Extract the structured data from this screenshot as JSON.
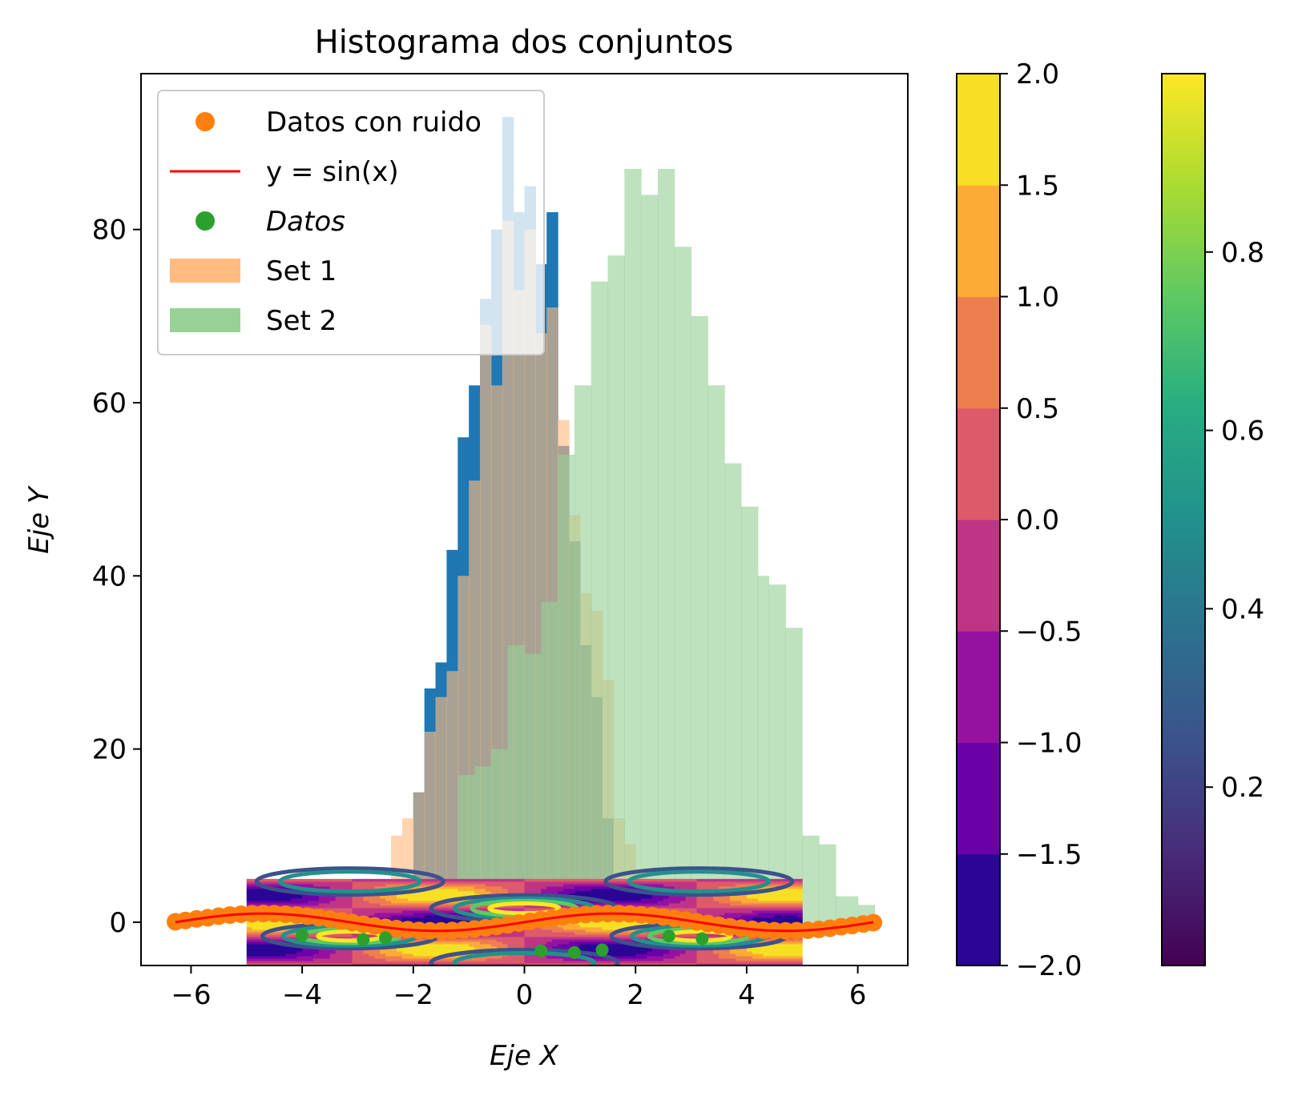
{
  "chart_data": {
    "type": "bar",
    "title": "Histograma dos conjuntos",
    "xlabel": "Eje X",
    "ylabel": "Eje Y",
    "xlim": [
      -6.9,
      6.9
    ],
    "ylim": [
      -5,
      98
    ],
    "xticks": [
      -6,
      -4,
      -2,
      0,
      2,
      4,
      6
    ],
    "xtick_labels": [
      "−6",
      "−4",
      "−2",
      "0",
      "2",
      "4",
      "6"
    ],
    "yticks": [
      0,
      20,
      40,
      60,
      80
    ],
    "ytick_labels": [
      "0",
      "20",
      "40",
      "60",
      "80"
    ],
    "legend": {
      "placement": "upper-left",
      "entries": [
        {
          "label": "Datos con ruido",
          "marker": "dot",
          "color": "#ff7f0e",
          "italic": false
        },
        {
          "label": "y = sin(x)",
          "marker": "line",
          "color": "#ff0000",
          "italic": false
        },
        {
          "label": "Datos",
          "marker": "dot",
          "color": "#2ca02c",
          "italic": true
        },
        {
          "label": "Set 1",
          "marker": "patch",
          "color": "#ffbb80",
          "italic": false
        },
        {
          "label": "Set 2",
          "marker": "patch",
          "color": "#97d196",
          "italic": false
        }
      ]
    },
    "histograms": [
      {
        "name": "",
        "color": "#1f77b4",
        "opacity": 1.0,
        "edges": [
          -2.0,
          -1.8,
          -1.6,
          -1.4,
          -1.2,
          -1.0,
          -0.8,
          -0.6,
          -0.4,
          -0.2,
          0.0,
          0.2,
          0.4,
          0.6,
          0.8,
          1.0,
          1.2,
          1.4,
          1.6,
          1.8
        ],
        "counts": [
          15,
          27,
          30,
          43,
          56,
          62,
          72,
          80,
          93,
          82,
          85,
          76,
          82,
          55,
          44,
          32,
          26,
          12,
          5
        ]
      },
      {
        "name": "Set 1",
        "color": "#ffbb80",
        "opacity": 0.62,
        "edges": [
          -2.4,
          -2.2,
          -2.0,
          -1.8,
          -1.6,
          -1.4,
          -1.2,
          -1.0,
          -0.8,
          -0.6,
          -0.4,
          -0.2,
          0.0,
          0.2,
          0.4,
          0.6,
          0.8,
          1.0,
          1.2,
          1.4,
          1.6,
          1.8,
          2.0,
          2.2,
          2.4
        ],
        "counts": [
          10,
          12,
          15,
          22,
          26,
          29,
          40,
          51,
          69,
          62,
          81,
          73,
          80,
          68,
          71,
          58,
          47,
          38,
          36,
          28,
          12,
          9,
          6,
          5
        ]
      },
      {
        "name": "Set 2",
        "color": "#97d196",
        "opacity": 0.62,
        "edges": [
          -1.2,
          -0.9,
          -0.6,
          -0.3,
          0.0,
          0.3,
          0.6,
          0.9,
          1.2,
          1.5,
          1.8,
          2.1,
          2.4,
          2.7,
          3.0,
          3.3,
          3.6,
          3.9,
          4.2,
          4.4,
          4.7,
          5.0,
          5.3,
          5.6,
          6.0,
          6.3
        ],
        "counts": [
          17,
          18,
          20,
          32,
          31,
          37,
          54,
          62,
          74,
          77,
          87,
          84,
          87,
          78,
          70,
          62,
          53,
          48,
          40,
          39,
          34,
          10,
          9,
          3,
          2
        ]
      }
    ],
    "line": {
      "name": "y = sin(x)",
      "color": "#ff0000",
      "x_range": [
        -6.28,
        6.28
      ],
      "function": "sin"
    },
    "scatter": [
      {
        "name": "Datos con ruido",
        "color": "#ff7f0e",
        "x": [
          -6.28,
          -6.1,
          -5.9,
          -5.7,
          -5.5,
          -5.3,
          -5.1,
          -4.9,
          -4.7,
          -4.5,
          -4.3,
          -4.1,
          -3.9,
          -3.7,
          -3.5,
          -3.3,
          -3.1,
          -2.9,
          -2.7,
          -2.5,
          -2.3,
          -2.1,
          -1.9,
          -1.7,
          -1.5,
          -1.3,
          -1.1,
          -0.9,
          -0.7,
          -0.5,
          -0.3,
          -0.1,
          0.1,
          0.3,
          0.5,
          0.7,
          0.9,
          1.1,
          1.3,
          1.5,
          1.7,
          1.9,
          2.1,
          2.3,
          2.5,
          2.7,
          2.9,
          3.1,
          3.3,
          3.5,
          3.7,
          3.9,
          4.1,
          4.3,
          4.5,
          4.7,
          4.9,
          5.1,
          5.3,
          5.5,
          5.7,
          5.9,
          6.1,
          6.28
        ],
        "y": [
          0.05,
          0.2,
          0.38,
          0.52,
          0.7,
          0.83,
          0.92,
          0.98,
          1.0,
          0.98,
          0.92,
          0.82,
          0.69,
          0.53,
          0.35,
          0.16,
          -0.04,
          -0.24,
          -0.43,
          -0.6,
          -0.75,
          -0.86,
          -0.95,
          -0.99,
          -1.0,
          -0.96,
          -0.89,
          -0.78,
          -0.64,
          -0.48,
          -0.3,
          -0.1,
          0.1,
          0.3,
          0.48,
          0.64,
          0.78,
          0.89,
          0.96,
          1.0,
          0.99,
          0.95,
          0.86,
          0.75,
          0.6,
          0.43,
          0.24,
          0.04,
          -0.16,
          -0.35,
          -0.53,
          -0.69,
          -0.82,
          -0.92,
          -0.98,
          -1.0,
          -0.98,
          -0.92,
          -0.83,
          -0.7,
          -0.52,
          -0.38,
          -0.2,
          -0.05
        ]
      },
      {
        "name": "Datos",
        "color": "#2ca02c",
        "x": [
          -4.0,
          -2.9,
          -2.5,
          0.3,
          0.9,
          1.4,
          2.6,
          3.2
        ],
        "y": [
          -1.5,
          -2.0,
          -1.8,
          -3.3,
          -3.5,
          -3.2,
          -1.6,
          -1.9
        ]
      }
    ],
    "contour": {
      "x_range": [
        -5,
        5
      ],
      "y_range": [
        -5,
        5
      ],
      "function": "sin(x)*cos(y)"
    },
    "colorbars": [
      {
        "name": "",
        "colormap": "plasma",
        "levels": [
          -2.0,
          -1.5,
          -1.0,
          -0.5,
          0.0,
          0.5,
          1.0,
          1.5,
          2.0
        ],
        "colors": [
          "#2b0595",
          "#6a00a8",
          "#9512a1",
          "#bf3585",
          "#dd5a6a",
          "#ef7e4f",
          "#fcab34",
          "#f7e024"
        ],
        "tick_labels": [
          "−2.0",
          "−1.5",
          "−1.0",
          "−0.5",
          "0.0",
          "0.5",
          "1.0",
          "1.5",
          "2.0"
        ]
      },
      {
        "name": "",
        "colormap": "viridis",
        "range": [
          0,
          1
        ],
        "ticks": [
          0.2,
          0.4,
          0.6,
          0.8
        ],
        "tick_labels": [
          "0.2",
          "0.4",
          "0.6",
          "0.8"
        ]
      }
    ]
  }
}
